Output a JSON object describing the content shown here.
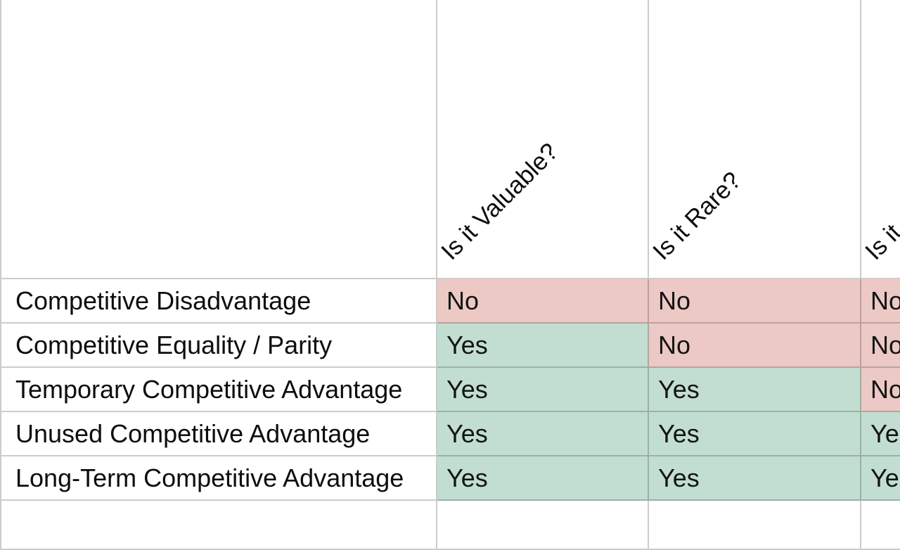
{
  "table": {
    "columns": [
      {
        "label": ""
      },
      {
        "label": "Is it Valuable?"
      },
      {
        "label": "Is it Rare?"
      },
      {
        "label": "Is it"
      }
    ],
    "rows": [
      {
        "label": "Competitive Disadvantage",
        "values": [
          "No",
          "No",
          "No"
        ]
      },
      {
        "label": "Competitive Equality / Parity",
        "values": [
          "Yes",
          "No",
          "No"
        ]
      },
      {
        "label": "Temporary Competitive Advantage",
        "values": [
          "Yes",
          "Yes",
          "No"
        ]
      },
      {
        "label": "Unused Competitive Advantage",
        "values": [
          "Yes",
          "Yes",
          "Yes"
        ]
      },
      {
        "label": "Long-Term Competitive Advantage",
        "values": [
          "Yes",
          "Yes",
          "Yes"
        ]
      }
    ],
    "colors": {
      "yes_bg": "#c2ded1",
      "no_bg": "#ecc9c4",
      "border": "rgba(0,0,0,0.2)",
      "text": "#111111"
    }
  }
}
